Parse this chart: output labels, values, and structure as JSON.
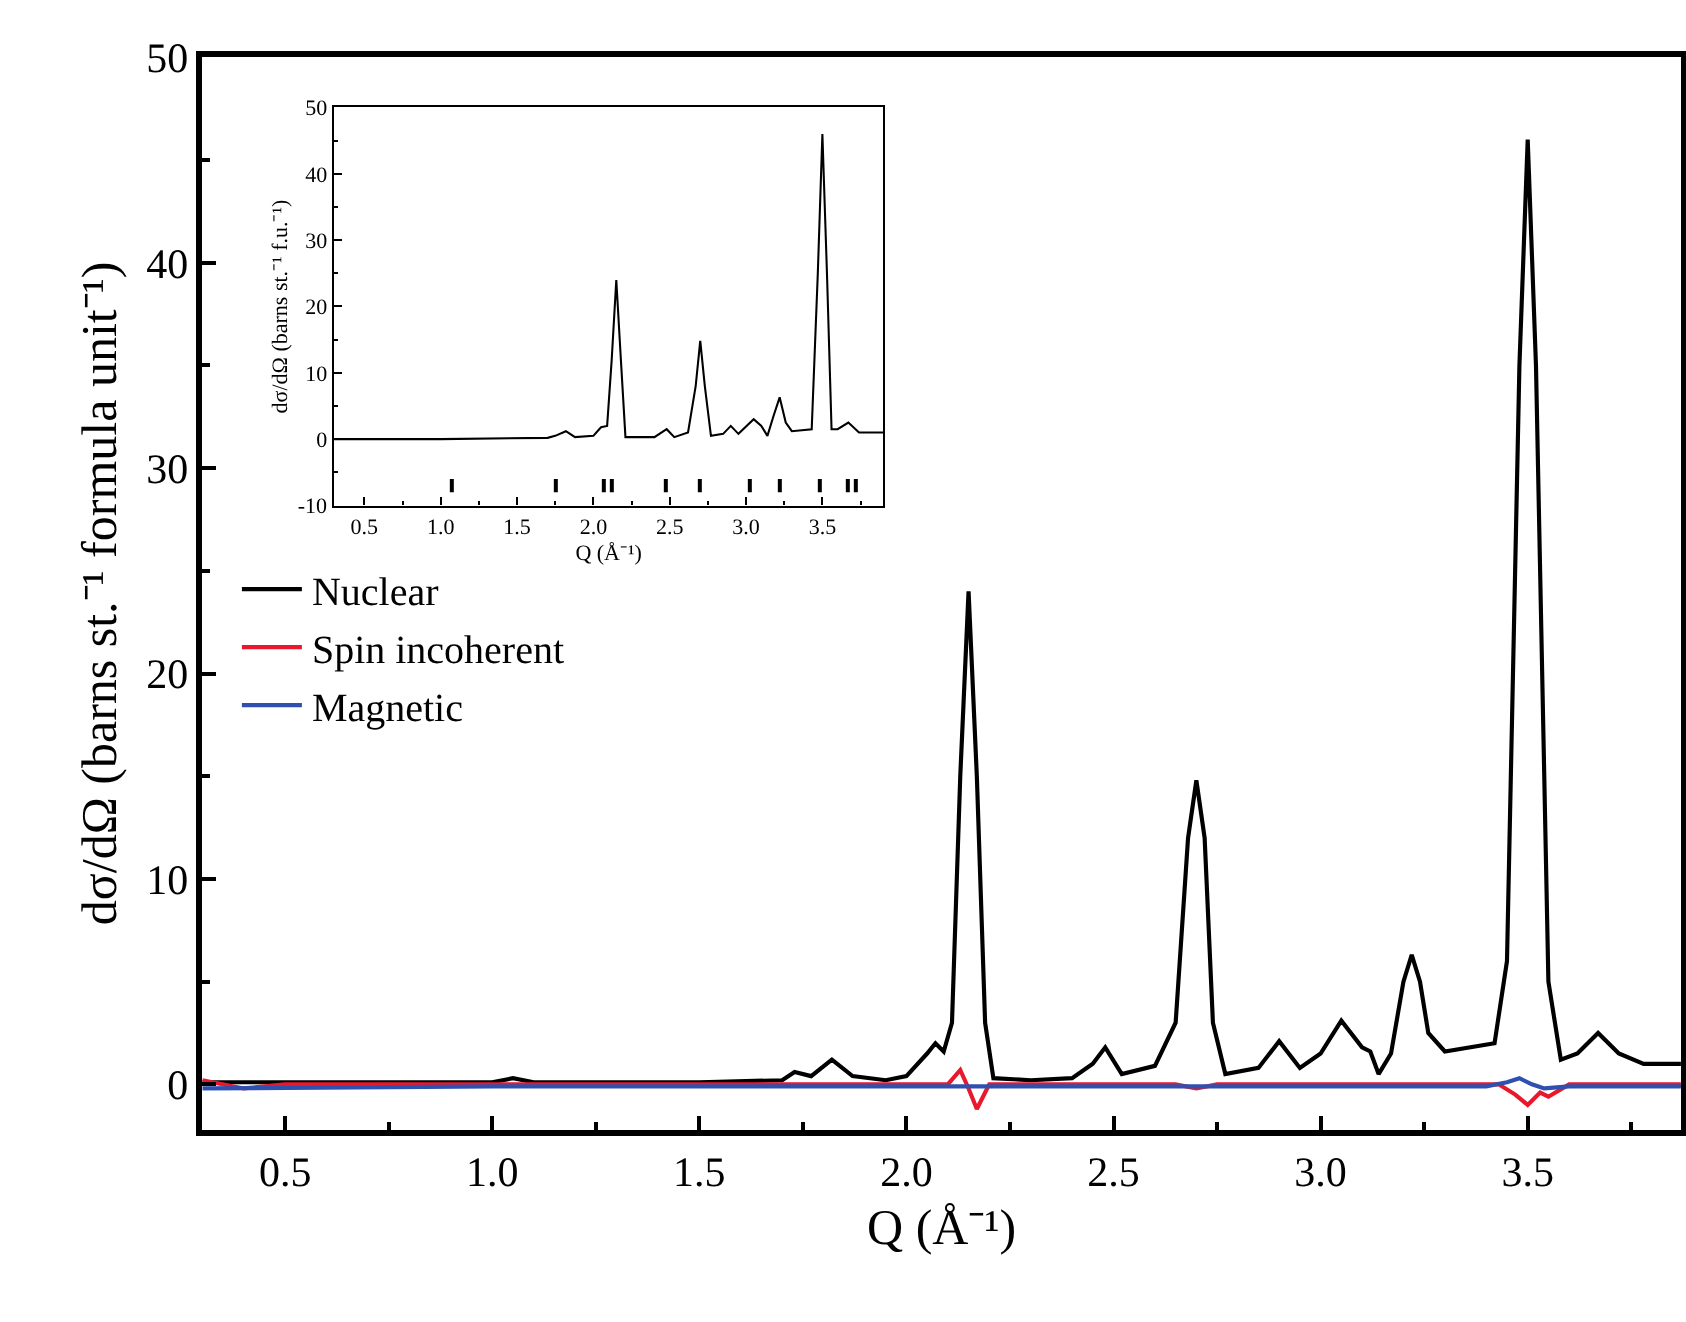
{
  "chart_data": [
    {
      "type": "line",
      "xlabel": "Q (Å⁻¹)",
      "ylabel": "dσ/dΩ (barns st.⁻¹ formula unit⁻¹)",
      "xlim": [
        0.3,
        3.87
      ],
      "ylim": [
        -2.2,
        50
      ],
      "xticks": [
        0.5,
        {
          "value": 0.75,
          "label": null
        },
        {
          "value": 1.0,
          "label": "1.0"
        },
        {
          "value": 1.25,
          "label": null
        },
        1.5,
        {
          "value": 1.75,
          "label": null
        },
        {
          "value": 2.0,
          "label": "2.0"
        },
        {
          "value": 2.25,
          "label": null
        },
        2.5,
        {
          "value": 2.75,
          "label": null
        },
        {
          "value": 3.0,
          "label": "3.0"
        },
        {
          "value": 3.25,
          "label": null
        },
        3.5,
        {
          "value": 3.75,
          "label": null
        }
      ],
      "yticks": [
        0,
        {
          "value": 5,
          "label": null
        },
        10,
        {
          "value": 15,
          "label": null
        },
        20,
        {
          "value": 25,
          "label": null
        },
        30,
        {
          "value": 35,
          "label": null
        },
        40,
        {
          "value": 45,
          "label": null
        },
        50
      ],
      "legend": "left",
      "marker": "none",
      "line_style": "solid",
      "series": [
        {
          "name": "Nuclear",
          "color": "#000000",
          "x": [
            0.3,
            0.5,
            0.8,
            1.0,
            1.05,
            1.1,
            1.3,
            1.5,
            1.7,
            1.73,
            1.77,
            1.82,
            1.87,
            1.95,
            2.0,
            2.05,
            2.07,
            2.09,
            2.11,
            2.13,
            2.15,
            2.17,
            2.19,
            2.21,
            2.3,
            2.4,
            2.45,
            2.48,
            2.52,
            2.6,
            2.65,
            2.68,
            2.7,
            2.72,
            2.74,
            2.77,
            2.85,
            2.9,
            2.95,
            3.0,
            3.05,
            3.1,
            3.12,
            3.14,
            3.17,
            3.2,
            3.22,
            3.24,
            3.26,
            3.3,
            3.42,
            3.45,
            3.48,
            3.5,
            3.52,
            3.55,
            3.58,
            3.62,
            3.67,
            3.72,
            3.78,
            3.87
          ],
          "values": [
            0.1,
            0.1,
            0.1,
            0.1,
            0.3,
            0.1,
            0.1,
            0.1,
            0.2,
            0.6,
            0.4,
            1.2,
            0.4,
            0.2,
            0.4,
            1.5,
            2.0,
            1.6,
            3.0,
            15,
            24,
            15,
            3.0,
            0.3,
            0.2,
            0.3,
            1.0,
            1.8,
            0.5,
            0.9,
            3.0,
            12,
            14.8,
            12,
            3.0,
            0.5,
            0.8,
            2.1,
            0.8,
            1.5,
            3.1,
            1.8,
            1.6,
            0.5,
            1.5,
            5.0,
            6.3,
            5.0,
            2.5,
            1.6,
            2.0,
            6.0,
            35,
            46,
            35,
            5.0,
            1.2,
            1.5,
            2.5,
            1.5,
            1.0,
            1.0
          ]
        },
        {
          "name": "Spin incoherent",
          "color": "#e8192c",
          "x": [
            0.3,
            0.4,
            0.5,
            1.0,
            2.0,
            2.1,
            2.13,
            2.15,
            2.17,
            2.2,
            2.65,
            2.7,
            2.75,
            3.43,
            3.47,
            3.5,
            3.53,
            3.55,
            3.6,
            3.87
          ],
          "values": [
            0.2,
            -0.2,
            0.0,
            0.0,
            0.0,
            0.0,
            0.7,
            -0.2,
            -1.2,
            0.0,
            0.0,
            -0.2,
            0.0,
            0.0,
            -0.5,
            -1.0,
            -0.4,
            -0.6,
            0.0,
            0.0
          ]
        },
        {
          "name": "Magnetic",
          "color": "#3050b0",
          "x": [
            0.3,
            1.0,
            2.0,
            3.4,
            3.45,
            3.48,
            3.51,
            3.54,
            3.6,
            3.87
          ],
          "values": [
            -0.2,
            -0.1,
            -0.1,
            -0.1,
            0.1,
            0.3,
            0.0,
            -0.2,
            -0.1,
            -0.1
          ]
        }
      ]
    },
    {
      "type": "line",
      "xlabel": "Q (Å⁻¹)",
      "ylabel": "dσ/dΩ (barns st.⁻¹ f.u.⁻¹)",
      "xlim": [
        0.3,
        3.9
      ],
      "ylim": [
        -10,
        50
      ],
      "xticks": [
        0.5,
        {
          "value": 0.75,
          "label": null
        },
        {
          "value": 1.0,
          "label": "1.0"
        },
        {
          "value": 1.25,
          "label": null
        },
        1.5,
        {
          "value": 1.75,
          "label": null
        },
        {
          "value": 2.0,
          "label": "2.0"
        },
        {
          "value": 2.25,
          "label": null
        },
        2.5,
        {
          "value": 2.75,
          "label": null
        },
        {
          "value": 3.0,
          "label": "3.0"
        },
        {
          "value": 3.25,
          "label": null
        },
        3.5,
        {
          "value": 3.75,
          "label": null
        }
      ],
      "yticks": [
        -10,
        {
          "value": -5,
          "label": null
        },
        0,
        {
          "value": 5,
          "label": null
        },
        10,
        {
          "value": 15,
          "label": null
        },
        20,
        {
          "value": 25,
          "label": null
        },
        30,
        {
          "value": 35,
          "label": null
        },
        40,
        {
          "value": 45,
          "label": null
        },
        50
      ],
      "legend": false,
      "series": [
        {
          "color": "#000000",
          "x": [
            0.3,
            1.0,
            1.7,
            1.75,
            1.82,
            1.88,
            2.0,
            2.05,
            2.09,
            2.12,
            2.15,
            2.18,
            2.21,
            2.4,
            2.48,
            2.53,
            2.62,
            2.67,
            2.7,
            2.73,
            2.77,
            2.85,
            2.9,
            2.95,
            3.05,
            3.1,
            3.14,
            3.18,
            3.22,
            3.26,
            3.3,
            3.43,
            3.47,
            3.5,
            3.53,
            3.56,
            3.6,
            3.67,
            3.74,
            3.9
          ],
          "values": [
            0,
            0,
            0.2,
            0.5,
            1.2,
            0.3,
            0.5,
            1.8,
            2.0,
            12,
            24,
            12,
            0.3,
            0.3,
            1.5,
            0.3,
            1.0,
            8,
            14.8,
            8,
            0.5,
            0.8,
            2.0,
            0.8,
            3.0,
            2.0,
            0.5,
            3.5,
            6.3,
            2.5,
            1.2,
            1.5,
            25,
            46,
            25,
            1.5,
            1.5,
            2.5,
            1.0,
            1.0
          ]
        },
        {
          "type": "bar",
          "color": "#000000",
          "x": [
            1.07,
            1.75,
            2.07,
            2.12,
            2.48,
            2.7,
            3.03,
            3.22,
            3.48,
            3.67,
            3.72
          ],
          "base": [
            -8,
            -8,
            -8,
            -8,
            -8,
            -8,
            -8,
            -8,
            -8,
            -8,
            -8
          ],
          "values": [
            2,
            2,
            2,
            2,
            2,
            2,
            2,
            2,
            2,
            2,
            2
          ]
        }
      ]
    }
  ]
}
